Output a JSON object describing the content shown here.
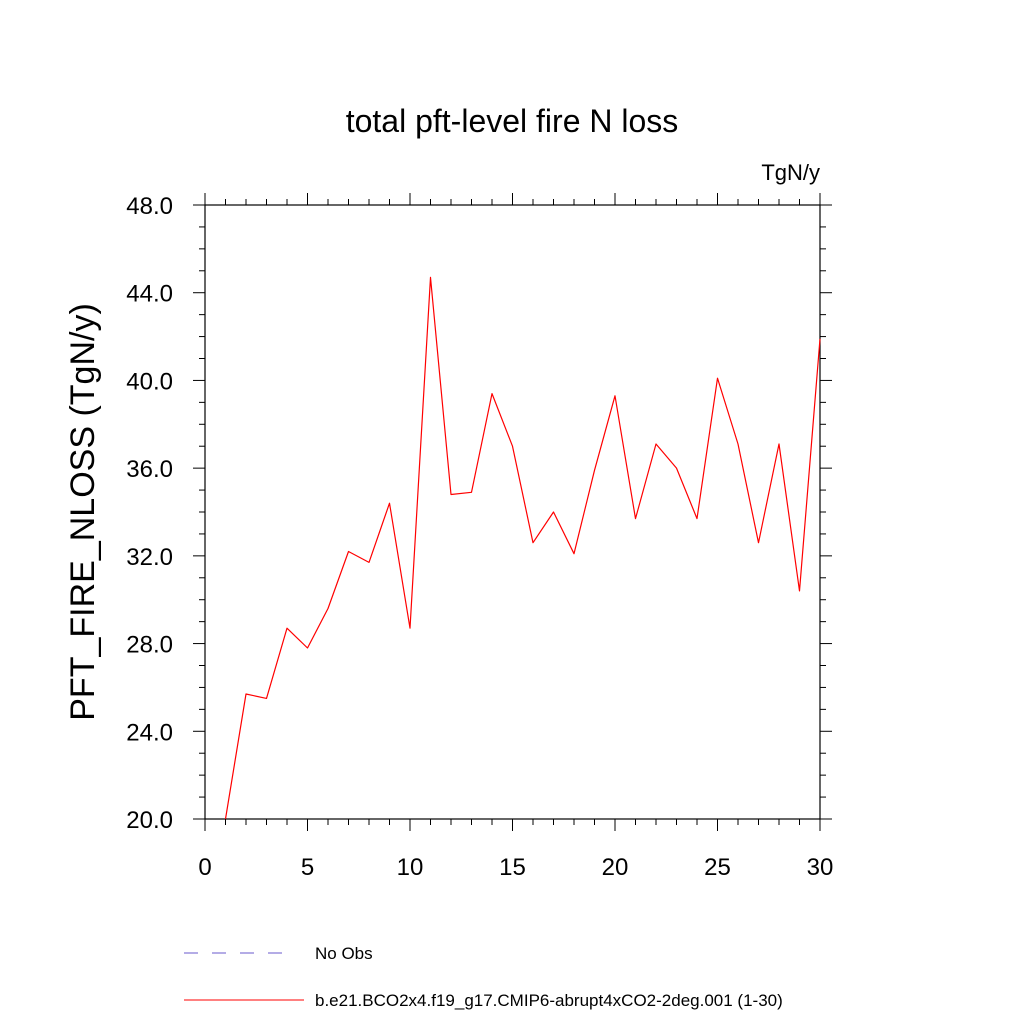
{
  "chart_data": {
    "type": "line",
    "title": "total pft-level fire N loss",
    "units": "TgN/y",
    "xlabel": "",
    "ylabel": "PFT_FIRE_NLOSS  (TgN/y)",
    "xlim": [
      0,
      30
    ],
    "ylim": [
      20,
      48
    ],
    "xticks": [
      0,
      5,
      10,
      15,
      20,
      25,
      30
    ],
    "xtick_labels": [
      "0",
      "5",
      "10",
      "15",
      "20",
      "25",
      "30"
    ],
    "yticks": [
      20,
      24,
      28,
      32,
      36,
      40,
      44,
      48
    ],
    "ytick_labels": [
      "20.0",
      "24.0",
      "28.0",
      "32.0",
      "36.0",
      "40.0",
      "44.0",
      "48.0"
    ],
    "series": [
      {
        "name": "b.e21.BCO2x4.f19_g17.CMIP6-abrupt4xCO2-2deg.001 (1-30)",
        "color": "#ff0000",
        "dash": "solid",
        "x": [
          1,
          2,
          3,
          4,
          5,
          6,
          7,
          8,
          9,
          10,
          11,
          12,
          13,
          14,
          15,
          16,
          17,
          18,
          19,
          20,
          21,
          22,
          23,
          24,
          25,
          26,
          27,
          28,
          29,
          30
        ],
        "values": [
          20.0,
          25.7,
          25.5,
          28.7,
          27.8,
          29.6,
          32.2,
          31.7,
          34.4,
          28.7,
          44.7,
          34.8,
          34.9,
          39.4,
          37.0,
          32.6,
          34.0,
          32.1,
          35.9,
          39.3,
          33.7,
          37.1,
          36.0,
          33.7,
          40.1,
          37.1,
          32.6,
          37.1,
          30.4,
          41.9
        ]
      }
    ],
    "legend": [
      {
        "label": "No Obs",
        "color": "#6a5acd",
        "dash": "dashed"
      },
      {
        "label": "b.e21.BCO2x4.f19_g17.CMIP6-abrupt4xCO2-2deg.001 (1-30)",
        "color": "#ff0000",
        "dash": "solid"
      }
    ]
  }
}
